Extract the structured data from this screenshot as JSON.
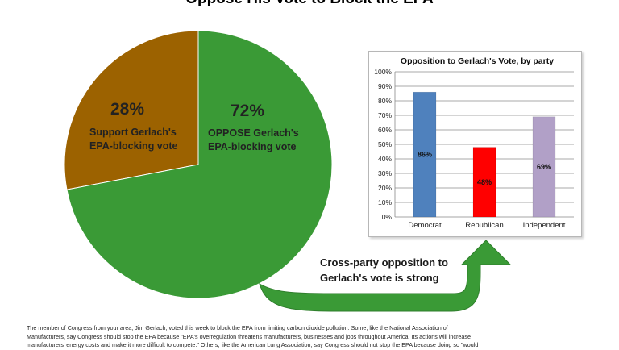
{
  "slide": {
    "title": "Oppose His Vote to Block the EPA"
  },
  "pie": {
    "slices": [
      {
        "pct_label": "28%",
        "caption_line1": "Support Gerlach's",
        "caption_line2": "EPA-blocking vote",
        "value": 28,
        "color": "#9c6200"
      },
      {
        "pct_label": "72%",
        "caption_line1": "OPPOSE Gerlach's",
        "caption_line2": "EPA-blocking vote",
        "value": 72,
        "color": "#3a9a36"
      }
    ]
  },
  "arrow": {
    "line1": "Cross-party opposition to",
    "line2": "Gerlach's vote is strong",
    "color": "#3a9a36"
  },
  "footnote": {
    "line1": "The member of Congress from your area, Jim Gerlach, voted this week to block the EPA from limiting carbon dioxide pollution. Some, like the National Association of",
    "line2": "Manufacturers, say Congress should stop the EPA because \"EPA's overregulation threatens manufacturers, businesses and jobs throughout America. Its actions will increase",
    "line3": "manufacturers' energy costs and make it more difficult to compete.\" Others, like the American Lung Association, say Congress should not stop the EPA because doing so \"would"
  },
  "chart_data": [
    {
      "type": "pie",
      "title": "",
      "categories": [
        "Support Gerlach's EPA-blocking vote",
        "OPPOSE Gerlach's EPA-blocking vote"
      ],
      "values": [
        28,
        72
      ],
      "colors": [
        "#9c6200",
        "#3a9a36"
      ],
      "legend": "none"
    },
    {
      "type": "bar",
      "title": "Opposition to Gerlach's Vote, by party",
      "categories": [
        "Democrat",
        "Republican",
        "Independent"
      ],
      "values": [
        86,
        48,
        69
      ],
      "data_labels": [
        "86%",
        "48%",
        "69%"
      ],
      "colors": [
        "#4f81bd",
        "#ff0000",
        "#b1a0c7"
      ],
      "ylim": [
        0,
        100
      ],
      "yticks": [
        "0%",
        "10%",
        "20%",
        "30%",
        "40%",
        "50%",
        "60%",
        "70%",
        "80%",
        "90%",
        "100%"
      ],
      "grid": true,
      "xlabel": "",
      "ylabel": "",
      "legend": "none"
    }
  ]
}
